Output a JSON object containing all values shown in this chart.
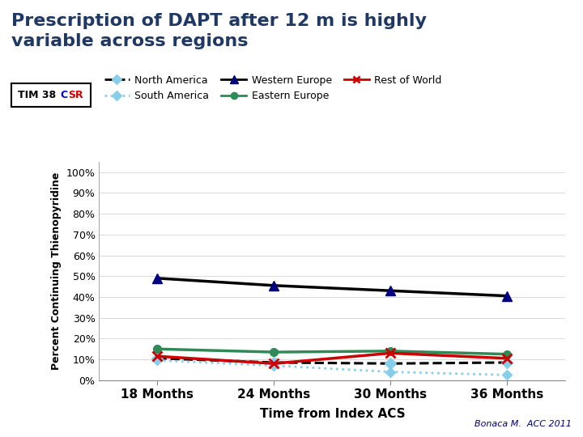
{
  "title": "Prescription of DAPT after 12 m is highly\nvariable across regions",
  "x_labels": [
    "18 Months",
    "24 Months",
    "30 Months",
    "36 Months"
  ],
  "x_values": [
    18,
    24,
    30,
    36
  ],
  "xlabel": "Time from Index ACS",
  "ylabel": "Percent Continuing Thienopyridine",
  "series": {
    "North America": {
      "values": [
        10.5,
        8.5,
        8.0,
        8.5
      ],
      "color": "#000000",
      "linestyle": "--",
      "marker": "D",
      "marker_color": "#87CEEB",
      "linewidth": 2.2
    },
    "South America": {
      "values": [
        9.5,
        7.0,
        4.0,
        2.5
      ],
      "color": "#87CEEB",
      "linestyle": ":",
      "marker": "D",
      "marker_color": "#87CEEB",
      "linewidth": 2.0
    },
    "Western Europe": {
      "values": [
        49.0,
        45.5,
        43.0,
        40.5
      ],
      "color": "#000000",
      "linestyle": "-",
      "marker": "^",
      "marker_color": "#000080",
      "linewidth": 2.5
    },
    "Eastern Europe": {
      "values": [
        15.0,
        13.5,
        14.0,
        12.5
      ],
      "color": "#2E8B57",
      "linestyle": "-",
      "marker": "o",
      "marker_color": "#2E8B57",
      "linewidth": 2.5
    },
    "Rest of World": {
      "values": [
        11.5,
        8.0,
        13.0,
        10.5
      ],
      "color": "#CC0000",
      "linestyle": "-",
      "marker": "x",
      "marker_color": "#CC0000",
      "linewidth": 2.5
    }
  },
  "yticks": [
    0,
    10,
    20,
    30,
    40,
    50,
    60,
    70,
    80,
    90,
    100
  ],
  "ytick_labels": [
    "0%",
    "10%",
    "20%",
    "30%",
    "40%",
    "50%",
    "60%",
    "70%",
    "80%",
    "90%",
    "100%"
  ],
  "ylim": [
    0,
    105
  ],
  "xlim": [
    15,
    39
  ],
  "bg_color": "#FFFFFF",
  "title_color": "#1F3864",
  "title_fontsize": 16,
  "attribution": "Bonaca M.  ACC 2011",
  "attribution_color": "#000080"
}
